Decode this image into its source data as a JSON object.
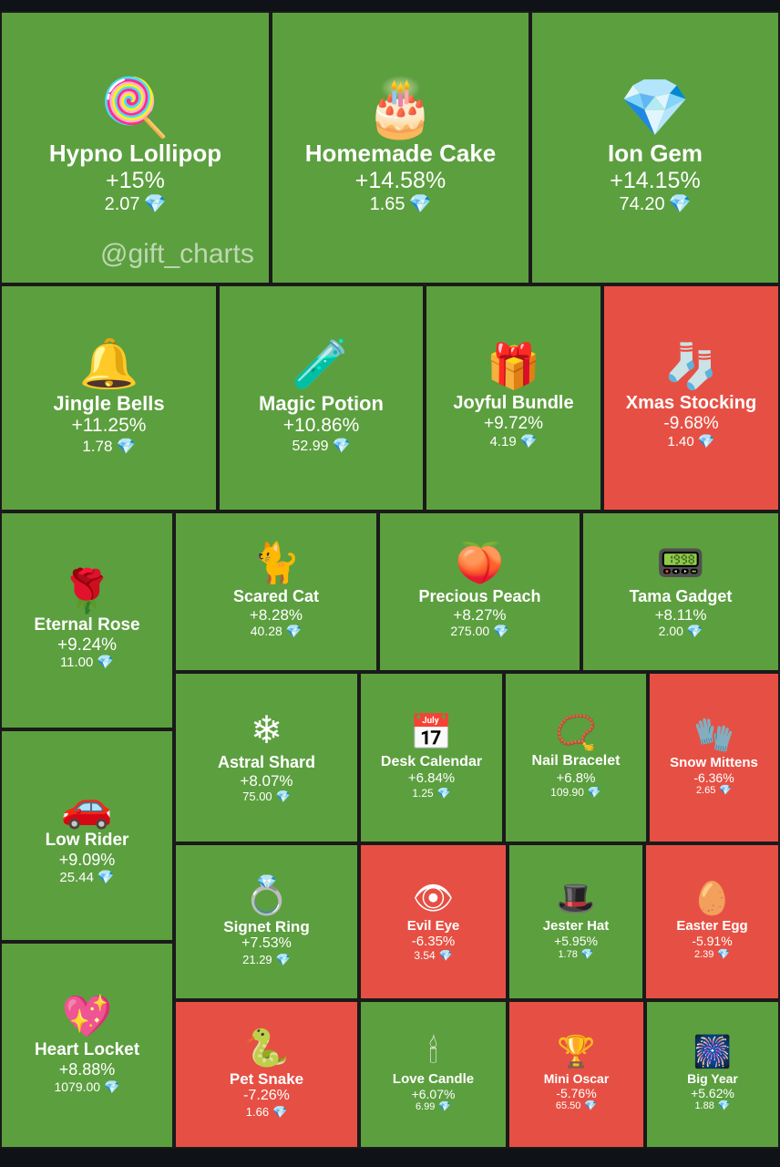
{
  "watermark": "@gift_charts",
  "currency_icon": "gem-icon",
  "colors": {
    "positive": "#5c9f3f",
    "negative": "#e65044",
    "border": "#1a1a1a",
    "background": "#0f1217"
  },
  "chart_data": {
    "type": "heatmap",
    "title": "",
    "items": [
      {
        "name": "Hypno Lollipop",
        "change": "+15%",
        "change_pct": 15,
        "price": "2.07",
        "icon": "lollipop-icon"
      },
      {
        "name": "Homemade Cake",
        "change": "+14.58%",
        "change_pct": 14.58,
        "price": "1.65",
        "icon": "cake-icon"
      },
      {
        "name": "Ion Gem",
        "change": "+14.15%",
        "change_pct": 14.15,
        "price": "74.20",
        "icon": "crystal-icon"
      },
      {
        "name": "Jingle Bells",
        "change": "+11.25%",
        "change_pct": 11.25,
        "price": "1.78",
        "icon": "bells-icon"
      },
      {
        "name": "Magic Potion",
        "change": "+10.86%",
        "change_pct": 10.86,
        "price": "52.99",
        "icon": "potion-icon"
      },
      {
        "name": "Joyful Bundle",
        "change": "+9.72%",
        "change_pct": 9.72,
        "price": "4.19",
        "icon": "gift-bundle-icon"
      },
      {
        "name": "Xmas Stocking",
        "change": "-9.68%",
        "change_pct": -9.68,
        "price": "1.40",
        "icon": "stocking-icon"
      },
      {
        "name": "Eternal Rose",
        "change": "+9.24%",
        "change_pct": 9.24,
        "price": "11.00",
        "icon": "rose-icon"
      },
      {
        "name": "Scared Cat",
        "change": "+8.28%",
        "change_pct": 8.28,
        "price": "40.28",
        "icon": "cat-icon"
      },
      {
        "name": "Precious Peach",
        "change": "+8.27%",
        "change_pct": 8.27,
        "price": "275.00",
        "icon": "peach-icon"
      },
      {
        "name": "Tama Gadget",
        "change": "+8.11%",
        "change_pct": 8.11,
        "price": "2.00",
        "icon": "gadget-icon"
      },
      {
        "name": "Astral Shard",
        "change": "+8.07%",
        "change_pct": 8.07,
        "price": "75.00",
        "icon": "shard-icon"
      },
      {
        "name": "Desk Calendar",
        "change": "+6.84%",
        "change_pct": 6.84,
        "price": "1.25",
        "icon": "calendar-icon"
      },
      {
        "name": "Nail Bracelet",
        "change": "+6.8%",
        "change_pct": 6.8,
        "price": "109.90",
        "icon": "bracelet-icon"
      },
      {
        "name": "Snow Mittens",
        "change": "-6.36%",
        "change_pct": -6.36,
        "price": "2.65",
        "icon": "mittens-icon"
      },
      {
        "name": "Low Rider",
        "change": "+9.09%",
        "change_pct": 9.09,
        "price": "25.44",
        "icon": "car-icon"
      },
      {
        "name": "Signet Ring",
        "change": "+7.53%",
        "change_pct": 7.53,
        "price": "21.29",
        "icon": "ring-icon"
      },
      {
        "name": "Evil Eye",
        "change": "-6.35%",
        "change_pct": -6.35,
        "price": "3.54",
        "icon": "eye-icon"
      },
      {
        "name": "Jester Hat",
        "change": "+5.95%",
        "change_pct": 5.95,
        "price": "1.78",
        "icon": "jester-hat-icon"
      },
      {
        "name": "Easter Egg",
        "change": "-5.91%",
        "change_pct": -5.91,
        "price": "2.39",
        "icon": "egg-icon"
      },
      {
        "name": "Heart Locket",
        "change": "+8.88%",
        "change_pct": 8.88,
        "price": "1079.00",
        "icon": "locket-icon"
      },
      {
        "name": "Pet Snake",
        "change": "-7.26%",
        "change_pct": -7.26,
        "price": "1.66",
        "icon": "snake-icon"
      },
      {
        "name": "Love Candle",
        "change": "+6.07%",
        "change_pct": 6.07,
        "price": "6.99",
        "icon": "candle-icon"
      },
      {
        "name": "Mini Oscar",
        "change": "-5.76%",
        "change_pct": -5.76,
        "price": "65.50",
        "icon": "trophy-icon"
      },
      {
        "name": "Big Year",
        "change": "+5.62%",
        "change_pct": 5.62,
        "price": "1.88",
        "icon": "year-icon"
      }
    ]
  }
}
